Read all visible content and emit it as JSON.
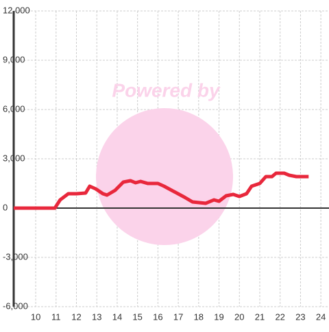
{
  "chart_data": {
    "type": "line",
    "watermark": "Powered by",
    "x": [
      8.92,
      10.94,
      11.2,
      11.6,
      12.0,
      12.45,
      12.65,
      12.95,
      13.3,
      13.5,
      13.9,
      14.3,
      14.65,
      14.9,
      15.15,
      15.5,
      16.0,
      16.3,
      16.8,
      17.3,
      17.7,
      18.35,
      18.75,
      19.0,
      19.35,
      19.7,
      20.0,
      20.35,
      20.6,
      21.0,
      21.3,
      21.6,
      21.8,
      22.2,
      22.45,
      22.8,
      23.4
    ],
    "values": [
      0,
      0,
      500,
      875,
      875,
      917,
      1333,
      1167,
      875,
      792,
      1083,
      1583,
      1667,
      1542,
      1625,
      1500,
      1500,
      1333,
      1000,
      667,
      375,
      292,
      500,
      417,
      750,
      833,
      708,
      875,
      1333,
      1500,
      1917,
      1917,
      2125,
      2125,
      2000,
      1917,
      1917
    ],
    "color": "#e8283c",
    "xlim": [
      8.92,
      24.4
    ],
    "xticks": [
      10,
      11,
      12,
      13,
      14,
      15,
      16,
      17,
      18,
      19,
      20,
      21,
      22,
      23,
      24
    ],
    "ylim": [
      -6000,
      12000
    ],
    "yticks": [
      {
        "value": -6000,
        "label": "-6,000"
      },
      {
        "value": -3000,
        "label": "-3,000"
      },
      0,
      {
        "value": 3000,
        "label": "3,000"
      },
      {
        "value": 6000,
        "label": "6,000"
      },
      {
        "value": 9000,
        "label": "9,000"
      },
      {
        "value": 12000,
        "label": "12,000"
      }
    ],
    "grid": true
  }
}
